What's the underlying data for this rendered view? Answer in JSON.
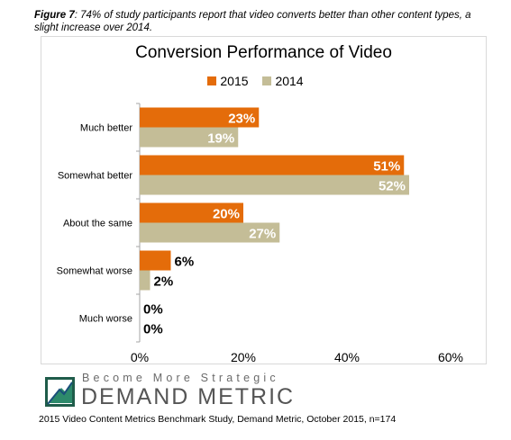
{
  "caption": {
    "label": "Figure 7",
    "text": ": 74% of study participants report that video converts better than other content types, a slight increase over 2014."
  },
  "colors": {
    "s2015": "#e46c0a",
    "s2014": "#c4bd97"
  },
  "chart_data": {
    "type": "bar",
    "orientation": "horizontal",
    "title": "Conversion Performance of Video",
    "categories": [
      "Much better",
      "Somewhat better",
      "About the same",
      "Somewhat worse",
      "Much worse"
    ],
    "series": [
      {
        "name": "2015",
        "values": [
          23,
          51,
          20,
          6,
          0
        ],
        "labels": [
          "23%",
          "51%",
          "20%",
          "6%",
          "0%"
        ]
      },
      {
        "name": "2014",
        "values": [
          19,
          52,
          27,
          2,
          0
        ],
        "labels": [
          "19%",
          "52%",
          "27%",
          "2%",
          "0%"
        ]
      }
    ],
    "xlim": [
      0,
      60
    ],
    "xticks": [
      "0%",
      "20%",
      "40%",
      "60%"
    ],
    "legend": "top-center",
    "grid": false
  },
  "brand": {
    "tagline": "Become More Strategic",
    "name": "DEMAND METRIC"
  },
  "source": "2015 Video Content Metrics Benchmark Study, Demand Metric, October 2015, n=174"
}
